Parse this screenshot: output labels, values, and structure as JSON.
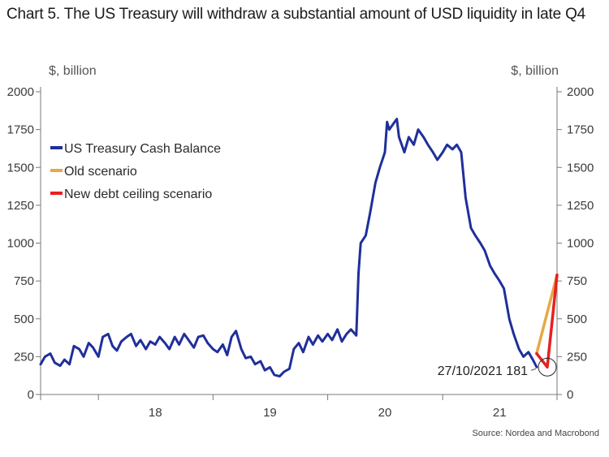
{
  "header": {
    "title": "Chart 5. The US Treasury will withdraw a substantial amount of USD liquidity in late Q4"
  },
  "footer": {
    "source": "Source: Nordea and Macrobond"
  },
  "chart_data": {
    "type": "line",
    "title": "Chart 5. The US Treasury will withdraw a substantial amount of USD liquidity in late Q4",
    "y_unit_left": "$, billion",
    "y_unit_right": "$, billion",
    "ylim": [
      0,
      2000
    ],
    "yticks": [
      0,
      250,
      500,
      750,
      1000,
      1250,
      1500,
      1750,
      2000
    ],
    "ytick_labels": [
      "0",
      "250",
      "500",
      "750",
      "1000",
      "1250",
      "1500",
      "1750",
      "2000"
    ],
    "xlim": [
      "2017-07-01",
      "2021-12-31"
    ],
    "xtick_labels": [
      {
        "label": "18",
        "center": "2018-07-01"
      },
      {
        "label": "19",
        "center": "2019-07-01"
      },
      {
        "label": "20",
        "center": "2020-07-01"
      },
      {
        "label": "21",
        "center": "2021-07-01"
      }
    ],
    "year_boundaries": [
      "2017-07-01",
      "2018-01-01",
      "2019-01-01",
      "2020-01-01",
      "2021-01-01",
      "2021-12-31"
    ],
    "grid": false,
    "legend_position": "top-left",
    "series": [
      {
        "name": "US Treasury Cash Balance",
        "color": "#1f2f9a",
        "points": [
          [
            "2017-07-01",
            200
          ],
          [
            "2017-07-15",
            250
          ],
          [
            "2017-08-01",
            270
          ],
          [
            "2017-08-15",
            210
          ],
          [
            "2017-09-01",
            190
          ],
          [
            "2017-09-15",
            230
          ],
          [
            "2017-10-01",
            200
          ],
          [
            "2017-10-15",
            320
          ],
          [
            "2017-11-01",
            300
          ],
          [
            "2017-11-15",
            250
          ],
          [
            "2017-12-01",
            340
          ],
          [
            "2017-12-15",
            310
          ],
          [
            "2018-01-01",
            250
          ],
          [
            "2018-01-15",
            380
          ],
          [
            "2018-02-01",
            400
          ],
          [
            "2018-02-15",
            320
          ],
          [
            "2018-03-01",
            290
          ],
          [
            "2018-03-15",
            350
          ],
          [
            "2018-04-01",
            380
          ],
          [
            "2018-04-15",
            400
          ],
          [
            "2018-05-01",
            320
          ],
          [
            "2018-05-15",
            360
          ],
          [
            "2018-06-01",
            300
          ],
          [
            "2018-06-15",
            350
          ],
          [
            "2018-07-01",
            330
          ],
          [
            "2018-07-15",
            380
          ],
          [
            "2018-08-01",
            340
          ],
          [
            "2018-08-15",
            300
          ],
          [
            "2018-09-01",
            380
          ],
          [
            "2018-09-15",
            330
          ],
          [
            "2018-10-01",
            400
          ],
          [
            "2018-10-15",
            360
          ],
          [
            "2018-11-01",
            310
          ],
          [
            "2018-11-15",
            380
          ],
          [
            "2018-12-01",
            390
          ],
          [
            "2018-12-15",
            340
          ],
          [
            "2019-01-01",
            300
          ],
          [
            "2019-01-15",
            280
          ],
          [
            "2019-02-01",
            330
          ],
          [
            "2019-02-15",
            260
          ],
          [
            "2019-03-01",
            380
          ],
          [
            "2019-03-15",
            420
          ],
          [
            "2019-04-01",
            300
          ],
          [
            "2019-04-15",
            240
          ],
          [
            "2019-05-01",
            250
          ],
          [
            "2019-05-15",
            200
          ],
          [
            "2019-06-01",
            220
          ],
          [
            "2019-06-15",
            160
          ],
          [
            "2019-07-01",
            180
          ],
          [
            "2019-07-15",
            130
          ],
          [
            "2019-08-01",
            120
          ],
          [
            "2019-08-15",
            150
          ],
          [
            "2019-09-01",
            170
          ],
          [
            "2019-09-15",
            300
          ],
          [
            "2019-10-01",
            340
          ],
          [
            "2019-10-15",
            280
          ],
          [
            "2019-11-01",
            380
          ],
          [
            "2019-11-15",
            330
          ],
          [
            "2019-12-01",
            390
          ],
          [
            "2019-12-15",
            350
          ],
          [
            "2020-01-01",
            400
          ],
          [
            "2020-01-15",
            360
          ],
          [
            "2020-02-01",
            430
          ],
          [
            "2020-02-15",
            350
          ],
          [
            "2020-03-01",
            400
          ],
          [
            "2020-03-15",
            430
          ],
          [
            "2020-04-01",
            390
          ],
          [
            "2020-04-08",
            800
          ],
          [
            "2020-04-15",
            1000
          ],
          [
            "2020-05-01",
            1050
          ],
          [
            "2020-05-15",
            1200
          ],
          [
            "2020-06-01",
            1400
          ],
          [
            "2020-06-15",
            1500
          ],
          [
            "2020-07-01",
            1600
          ],
          [
            "2020-07-08",
            1800
          ],
          [
            "2020-07-15",
            1750
          ],
          [
            "2020-08-01",
            1800
          ],
          [
            "2020-08-08",
            1820
          ],
          [
            "2020-08-15",
            1700
          ],
          [
            "2020-09-01",
            1600
          ],
          [
            "2020-09-15",
            1700
          ],
          [
            "2020-10-01",
            1650
          ],
          [
            "2020-10-15",
            1750
          ],
          [
            "2020-11-01",
            1700
          ],
          [
            "2020-11-15",
            1650
          ],
          [
            "2020-12-01",
            1600
          ],
          [
            "2020-12-15",
            1550
          ],
          [
            "2021-01-01",
            1600
          ],
          [
            "2021-01-15",
            1650
          ],
          [
            "2021-02-01",
            1620
          ],
          [
            "2021-02-15",
            1650
          ],
          [
            "2021-03-01",
            1600
          ],
          [
            "2021-03-15",
            1300
          ],
          [
            "2021-04-01",
            1100
          ],
          [
            "2021-04-15",
            1050
          ],
          [
            "2021-05-01",
            1000
          ],
          [
            "2021-05-15",
            950
          ],
          [
            "2021-06-01",
            850
          ],
          [
            "2021-06-15",
            800
          ],
          [
            "2021-07-01",
            750
          ],
          [
            "2021-07-15",
            700
          ],
          [
            "2021-08-01",
            500
          ],
          [
            "2021-08-15",
            400
          ],
          [
            "2021-09-01",
            300
          ],
          [
            "2021-09-15",
            250
          ],
          [
            "2021-10-01",
            280
          ],
          [
            "2021-10-15",
            230
          ],
          [
            "2021-10-27",
            181
          ]
        ]
      },
      {
        "name": "Old scenario",
        "color": "#e8a845",
        "points": [
          [
            "2021-10-27",
            270
          ],
          [
            "2021-12-31",
            790
          ]
        ]
      },
      {
        "name": "New debt ceiling scenario",
        "color": "#e8201f",
        "points": [
          [
            "2021-10-27",
            270
          ],
          [
            "2021-11-30",
            181
          ],
          [
            "2021-12-31",
            790
          ]
        ]
      }
    ],
    "annotation": {
      "label": "27/10/2021 181",
      "x": "2021-11-30",
      "y": 181
    }
  }
}
